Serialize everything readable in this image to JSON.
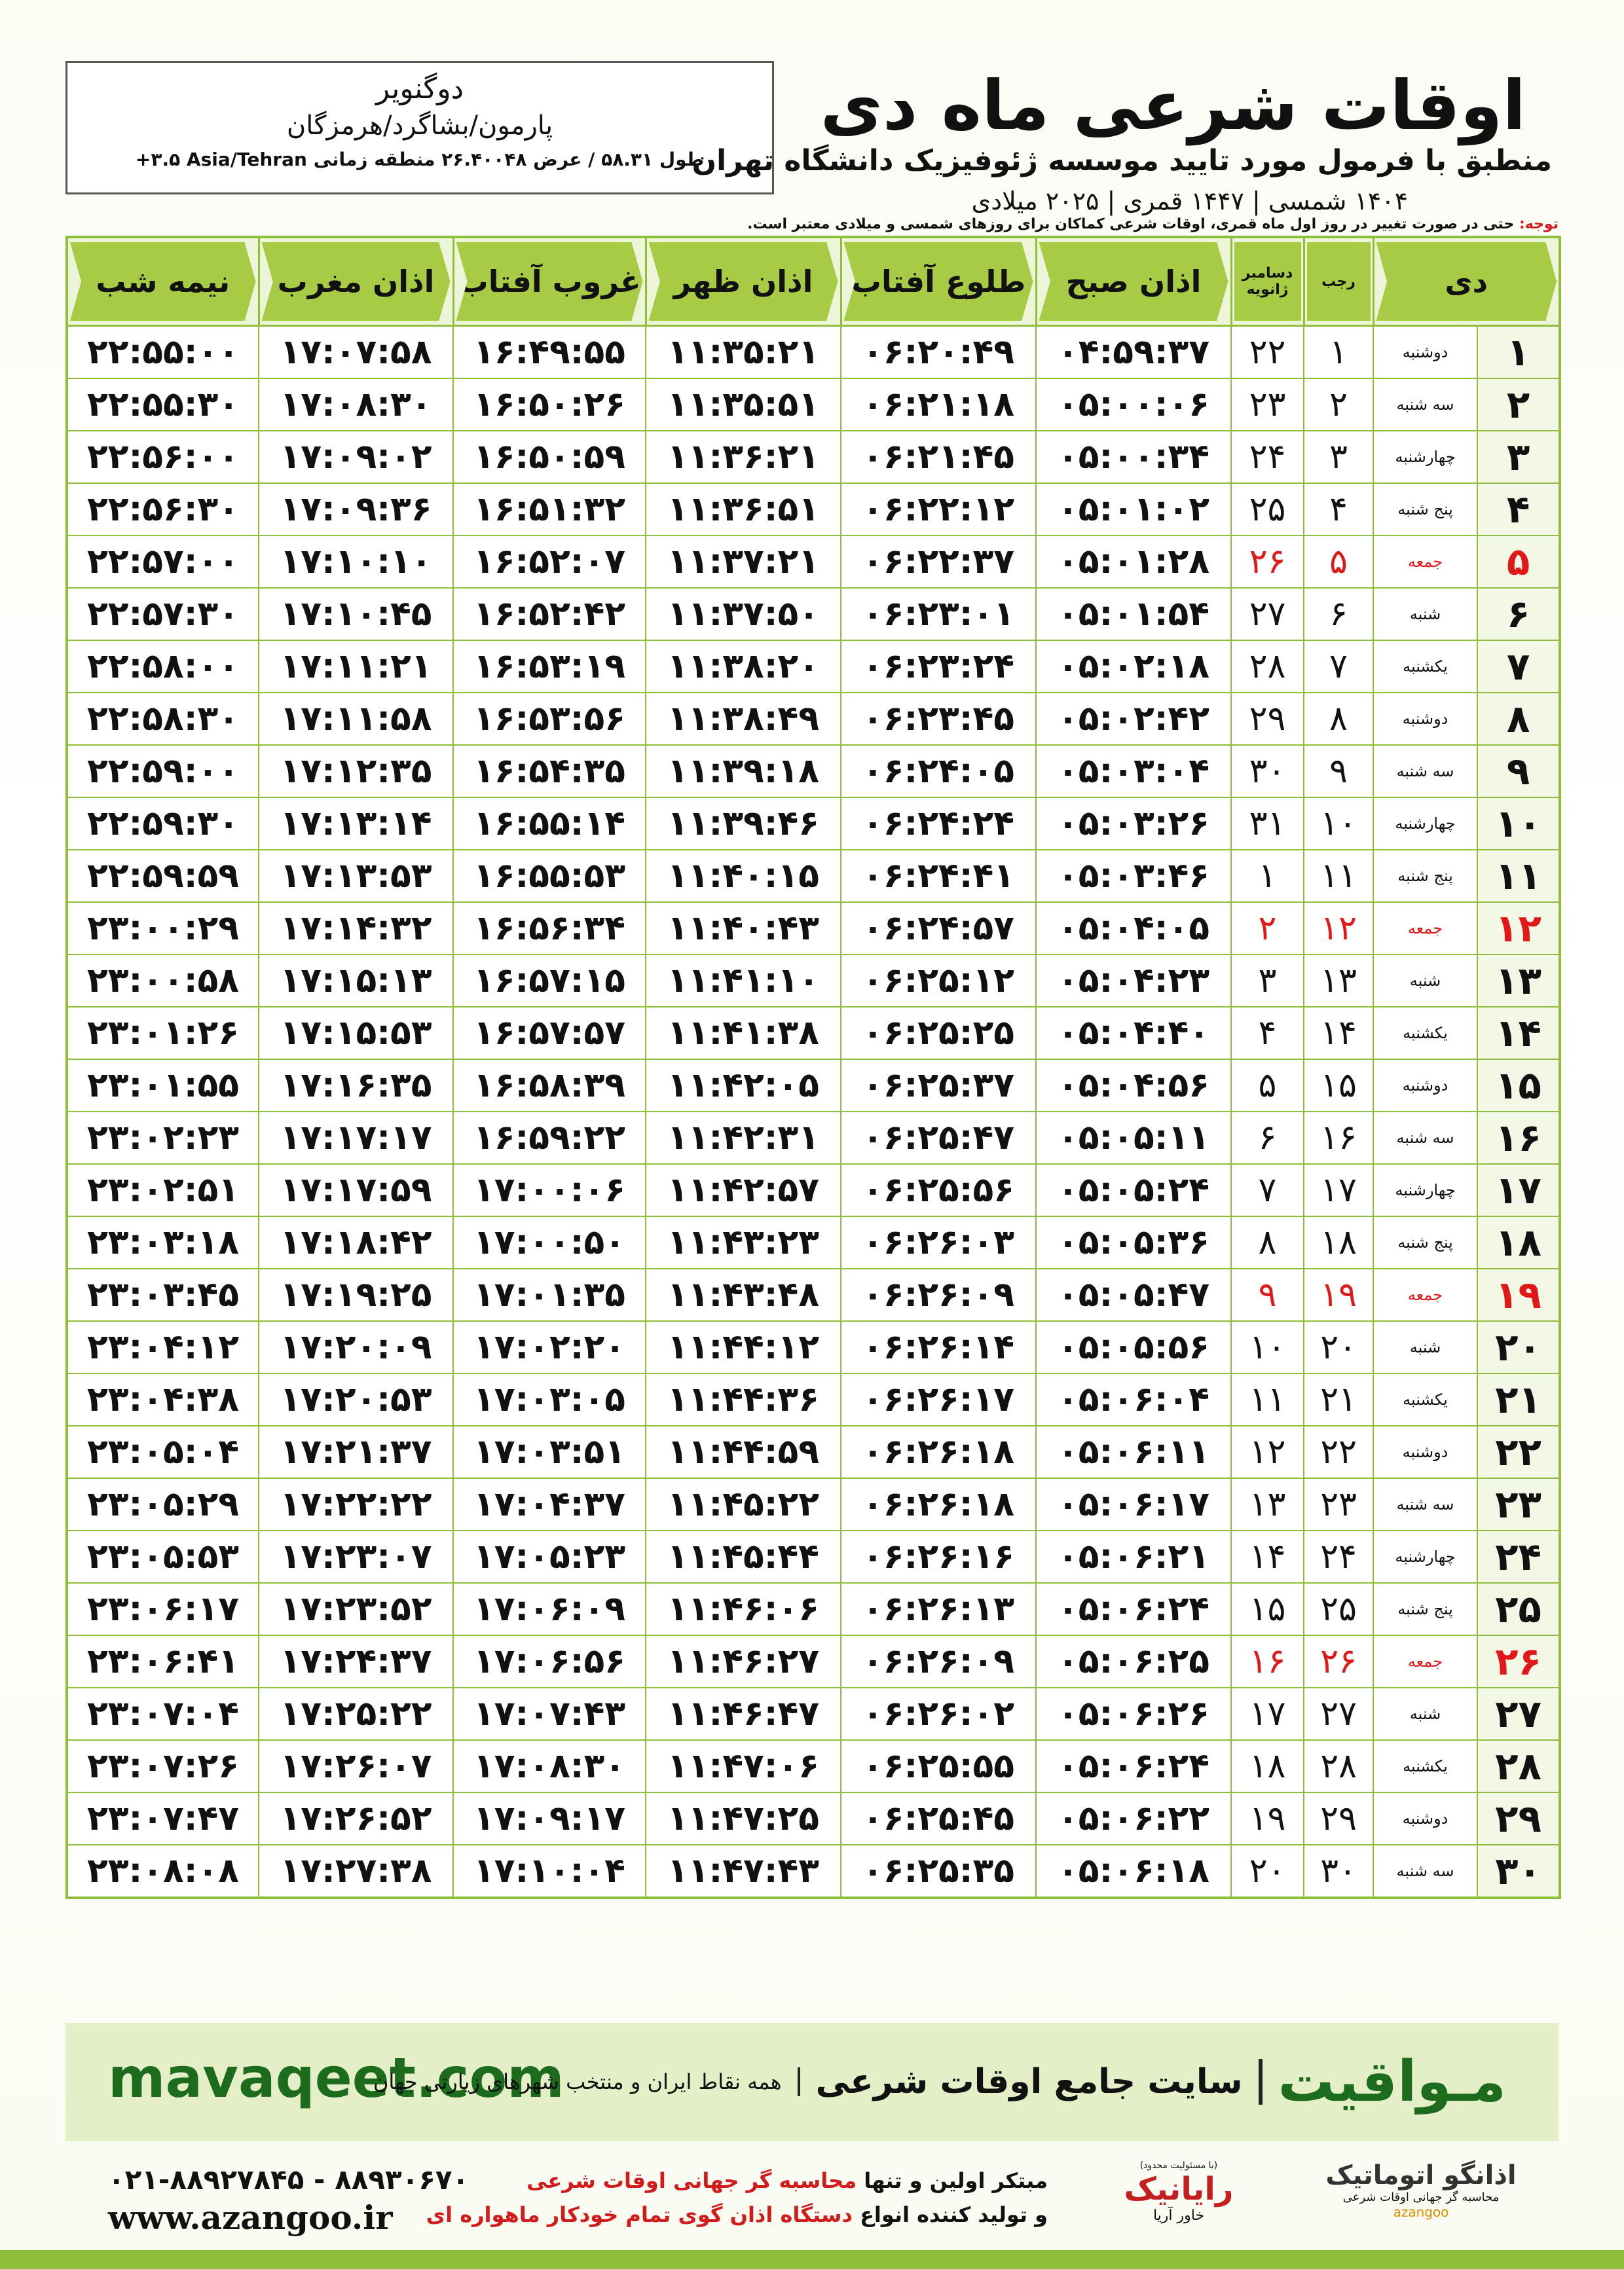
{
  "header": {
    "title": "اوقات شرعی ماه دی",
    "subtitle": "منطبق با فرمول مورد تایید موسسه ژئوفیزیک دانشگاه تهران",
    "date_line": "۱۴۰۴ شمسی | ۱۴۴۷ قمری | ۲۰۲۵ میلادی"
  },
  "location": {
    "city": "دوگنویر",
    "region": "پارمون/بشاگرد/هرمزگان",
    "coords": "طول ۵۸.۳۱ / عرض ۲۶.۴۰۰۴۸ منطقه زمانی ‎+۳.۵ Asia/Tehran"
  },
  "note": {
    "label": "توجه:",
    "text": "حتی در صورت تغییر در روز اول ماه قمری، اوقات شرعی کماکان برای روزهای شمسی و میلادی معتبر است."
  },
  "table": {
    "columns": [
      "دی",
      "رجب",
      "دسامبر",
      "ژانویه",
      "اذان صبح",
      "طلوع آفتاب",
      "اذان ظهر",
      "غروب آفتاب",
      "اذان مغرب",
      "نیمه شب"
    ],
    "rows": [
      [
        "۱",
        "دوشنبه",
        "۱",
        "۲۲",
        "۰۴:۵۹:۳۷",
        "۰۶:۲۰:۴۹",
        "۱۱:۳۵:۲۱",
        "۱۶:۴۹:۵۵",
        "۱۷:۰۷:۵۸",
        "۲۲:۵۵:۰۰"
      ],
      [
        "۲",
        "سه شنبه",
        "۲",
        "۲۳",
        "۰۵:۰۰:۰۶",
        "۰۶:۲۱:۱۸",
        "۱۱:۳۵:۵۱",
        "۱۶:۵۰:۲۶",
        "۱۷:۰۸:۳۰",
        "۲۲:۵۵:۳۰"
      ],
      [
        "۳",
        "چهارشنبه",
        "۳",
        "۲۴",
        "۰۵:۰۰:۳۴",
        "۰۶:۲۱:۴۵",
        "۱۱:۳۶:۲۱",
        "۱۶:۵۰:۵۹",
        "۱۷:۰۹:۰۲",
        "۲۲:۵۶:۰۰"
      ],
      [
        "۴",
        "پنج شنبه",
        "۴",
        "۲۵",
        "۰۵:۰۱:۰۲",
        "۰۶:۲۲:۱۲",
        "۱۱:۳۶:۵۱",
        "۱۶:۵۱:۳۲",
        "۱۷:۰۹:۳۶",
        "۲۲:۵۶:۳۰"
      ],
      [
        "۵",
        "جمعه",
        "۵",
        "۲۶",
        "۰۵:۰۱:۲۸",
        "۰۶:۲۲:۳۷",
        "۱۱:۳۷:۲۱",
        "۱۶:۵۲:۰۷",
        "۱۷:۱۰:۱۰",
        "۲۲:۵۷:۰۰"
      ],
      [
        "۶",
        "شنبه",
        "۶",
        "۲۷",
        "۰۵:۰۱:۵۴",
        "۰۶:۲۳:۰۱",
        "۱۱:۳۷:۵۰",
        "۱۶:۵۲:۴۲",
        "۱۷:۱۰:۴۵",
        "۲۲:۵۷:۳۰"
      ],
      [
        "۷",
        "یکشنبه",
        "۷",
        "۲۸",
        "۰۵:۰۲:۱۸",
        "۰۶:۲۳:۲۴",
        "۱۱:۳۸:۲۰",
        "۱۶:۵۳:۱۹",
        "۱۷:۱۱:۲۱",
        "۲۲:۵۸:۰۰"
      ],
      [
        "۸",
        "دوشنبه",
        "۸",
        "۲۹",
        "۰۵:۰۲:۴۲",
        "۰۶:۲۳:۴۵",
        "۱۱:۳۸:۴۹",
        "۱۶:۵۳:۵۶",
        "۱۷:۱۱:۵۸",
        "۲۲:۵۸:۳۰"
      ],
      [
        "۹",
        "سه شنبه",
        "۹",
        "۳۰",
        "۰۵:۰۳:۰۴",
        "۰۶:۲۴:۰۵",
        "۱۱:۳۹:۱۸",
        "۱۶:۵۴:۳۵",
        "۱۷:۱۲:۳۵",
        "۲۲:۵۹:۰۰"
      ],
      [
        "۱۰",
        "چهارشنبه",
        "۱۰",
        "۳۱",
        "۰۵:۰۳:۲۶",
        "۰۶:۲۴:۲۴",
        "۱۱:۳۹:۴۶",
        "۱۶:۵۵:۱۴",
        "۱۷:۱۳:۱۴",
        "۲۲:۵۹:۳۰"
      ],
      [
        "۱۱",
        "پنج شنبه",
        "۱۱",
        "۱",
        "۰۵:۰۳:۴۶",
        "۰۶:۲۴:۴۱",
        "۱۱:۴۰:۱۵",
        "۱۶:۵۵:۵۳",
        "۱۷:۱۳:۵۳",
        "۲۲:۵۹:۵۹"
      ],
      [
        "۱۲",
        "جمعه",
        "۱۲",
        "۲",
        "۰۵:۰۴:۰۵",
        "۰۶:۲۴:۵۷",
        "۱۱:۴۰:۴۳",
        "۱۶:۵۶:۳۴",
        "۱۷:۱۴:۳۲",
        "۲۳:۰۰:۲۹"
      ],
      [
        "۱۳",
        "شنبه",
        "۱۳",
        "۳",
        "۰۵:۰۴:۲۳",
        "۰۶:۲۵:۱۲",
        "۱۱:۴۱:۱۰",
        "۱۶:۵۷:۱۵",
        "۱۷:۱۵:۱۳",
        "۲۳:۰۰:۵۸"
      ],
      [
        "۱۴",
        "یکشنبه",
        "۱۴",
        "۴",
        "۰۵:۰۴:۴۰",
        "۰۶:۲۵:۲۵",
        "۱۱:۴۱:۳۸",
        "۱۶:۵۷:۵۷",
        "۱۷:۱۵:۵۳",
        "۲۳:۰۱:۲۶"
      ],
      [
        "۱۵",
        "دوشنبه",
        "۱۵",
        "۵",
        "۰۵:۰۴:۵۶",
        "۰۶:۲۵:۳۷",
        "۱۱:۴۲:۰۵",
        "۱۶:۵۸:۳۹",
        "۱۷:۱۶:۳۵",
        "۲۳:۰۱:۵۵"
      ],
      [
        "۱۶",
        "سه شنبه",
        "۱۶",
        "۶",
        "۰۵:۰۵:۱۱",
        "۰۶:۲۵:۴۷",
        "۱۱:۴۲:۳۱",
        "۱۶:۵۹:۲۲",
        "۱۷:۱۷:۱۷",
        "۲۳:۰۲:۲۳"
      ],
      [
        "۱۷",
        "چهارشنبه",
        "۱۷",
        "۷",
        "۰۵:۰۵:۲۴",
        "۰۶:۲۵:۵۶",
        "۱۱:۴۲:۵۷",
        "۱۷:۰۰:۰۶",
        "۱۷:۱۷:۵۹",
        "۲۳:۰۲:۵۱"
      ],
      [
        "۱۸",
        "پنج شنبه",
        "۱۸",
        "۸",
        "۰۵:۰۵:۳۶",
        "۰۶:۲۶:۰۳",
        "۱۱:۴۳:۲۳",
        "۱۷:۰۰:۵۰",
        "۱۷:۱۸:۴۲",
        "۲۳:۰۳:۱۸"
      ],
      [
        "۱۹",
        "جمعه",
        "۱۹",
        "۹",
        "۰۵:۰۵:۴۷",
        "۰۶:۲۶:۰۹",
        "۱۱:۴۳:۴۸",
        "۱۷:۰۱:۳۵",
        "۱۷:۱۹:۲۵",
        "۲۳:۰۳:۴۵"
      ],
      [
        "۲۰",
        "شنبه",
        "۲۰",
        "۱۰",
        "۰۵:۰۵:۵۶",
        "۰۶:۲۶:۱۴",
        "۱۱:۴۴:۱۲",
        "۱۷:۰۲:۲۰",
        "۱۷:۲۰:۰۹",
        "۲۳:۰۴:۱۲"
      ],
      [
        "۲۱",
        "یکشنبه",
        "۲۱",
        "۱۱",
        "۰۵:۰۶:۰۴",
        "۰۶:۲۶:۱۷",
        "۱۱:۴۴:۳۶",
        "۱۷:۰۳:۰۵",
        "۱۷:۲۰:۵۳",
        "۲۳:۰۴:۳۸"
      ],
      [
        "۲۲",
        "دوشنبه",
        "۲۲",
        "۱۲",
        "۰۵:۰۶:۱۱",
        "۰۶:۲۶:۱۸",
        "۱۱:۴۴:۵۹",
        "۱۷:۰۳:۵۱",
        "۱۷:۲۱:۳۷",
        "۲۳:۰۵:۰۴"
      ],
      [
        "۲۳",
        "سه شنبه",
        "۲۳",
        "۱۳",
        "۰۵:۰۶:۱۷",
        "۰۶:۲۶:۱۸",
        "۱۱:۴۵:۲۲",
        "۱۷:۰۴:۳۷",
        "۱۷:۲۲:۲۲",
        "۲۳:۰۵:۲۹"
      ],
      [
        "۲۴",
        "چهارشنبه",
        "۲۴",
        "۱۴",
        "۰۵:۰۶:۲۱",
        "۰۶:۲۶:۱۶",
        "۱۱:۴۵:۴۴",
        "۱۷:۰۵:۲۳",
        "۱۷:۲۳:۰۷",
        "۲۳:۰۵:۵۳"
      ],
      [
        "۲۵",
        "پنج شنبه",
        "۲۵",
        "۱۵",
        "۰۵:۰۶:۲۴",
        "۰۶:۲۶:۱۳",
        "۱۱:۴۶:۰۶",
        "۱۷:۰۶:۰۹",
        "۱۷:۲۳:۵۲",
        "۲۳:۰۶:۱۷"
      ],
      [
        "۲۶",
        "جمعه",
        "۲۶",
        "۱۶",
        "۰۵:۰۶:۲۵",
        "۰۶:۲۶:۰۹",
        "۱۱:۴۶:۲۷",
        "۱۷:۰۶:۵۶",
        "۱۷:۲۴:۳۷",
        "۲۳:۰۶:۴۱"
      ],
      [
        "۲۷",
        "شنبه",
        "۲۷",
        "۱۷",
        "۰۵:۰۶:۲۶",
        "۰۶:۲۶:۰۲",
        "۱۱:۴۶:۴۷",
        "۱۷:۰۷:۴۳",
        "۱۷:۲۵:۲۲",
        "۲۳:۰۷:۰۴"
      ],
      [
        "۲۸",
        "یکشنبه",
        "۲۸",
        "۱۸",
        "۰۵:۰۶:۲۴",
        "۰۶:۲۵:۵۵",
        "۱۱:۴۷:۰۶",
        "۱۷:۰۸:۳۰",
        "۱۷:۲۶:۰۷",
        "۲۳:۰۷:۲۶"
      ],
      [
        "۲۹",
        "دوشنبه",
        "۲۹",
        "۱۹",
        "۰۵:۰۶:۲۲",
        "۰۶:۲۵:۴۵",
        "۱۱:۴۷:۲۵",
        "۱۷:۰۹:۱۷",
        "۱۷:۲۶:۵۲",
        "۲۳:۰۷:۴۷"
      ],
      [
        "۳۰",
        "سه شنبه",
        "۳۰",
        "۲۰",
        "۰۵:۰۶:۱۸",
        "۰۶:۲۵:۳۵",
        "۱۱:۴۷:۴۳",
        "۱۷:۱۰:۰۴",
        "۱۷:۲۷:۳۸",
        "۲۳:۰۸:۰۸"
      ]
    ]
  },
  "footer": {
    "site": "mavaqeet.com",
    "brand": "مـواقیت",
    "slogan": "سایت جامع اوقات شرعی",
    "coverage": "همه نقاط ایران و منتخب شهرهای زیارتی جهان"
  },
  "contact": {
    "phone": "۰۲۱-۸۸۹۲۷۸۴۵ - ۸۸۹۳۰۶۷۰",
    "web": "www.azangoo.ir",
    "line1": [
      "مبتکر اولین و تنها",
      "محاسبه گر جهانی اوقات شرعی"
    ],
    "line2": [
      "و تولید کننده انواع",
      "دستگاه اذان گوی تمام خودکار ماهواره ای"
    ],
    "logo1": {
      "name": "رایانیک",
      "sub": "خاور آریا",
      "note": "(با مسئولیت محدود)"
    },
    "logo2": {
      "name": "اذانگو اتوماتیک",
      "sub": "محاسبه گر جهانی اوقات شرعی",
      "latin": "azangoo"
    }
  }
}
